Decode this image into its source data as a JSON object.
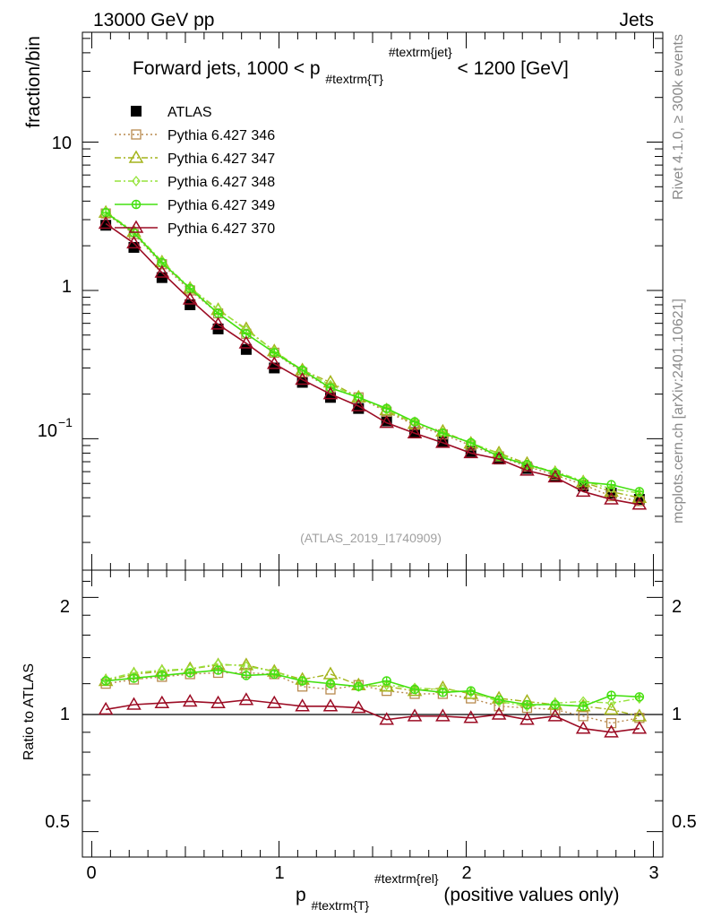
{
  "header": {
    "left": "13000 GeV pp",
    "right": "Jets"
  },
  "side_labels": {
    "rivet": "Rivet 4.1.0, ≥ 300k events",
    "mcplots": "mcplots.cern.ch [arXiv:2401.10621]"
  },
  "watermark": "(ATLAS_2019_I1740909)",
  "chart_data": [
    {
      "type": "line",
      "title": "Forward jets, 1000 < p",
      "title_sub": "#textrm{T}",
      "title_sup": "#textrm{jet}",
      "title_end": " < 1200 [GeV]",
      "ylabel": "fraction/bin",
      "yscale": "log",
      "ylim": [
        0.013,
        55
      ],
      "xlim": [
        -0.05,
        3.05
      ],
      "y_ticks": [
        {
          "value": 10,
          "label": "10"
        },
        {
          "value": 1,
          "label": "1"
        },
        {
          "value": 0.1,
          "label": "10",
          "sup": "−1"
        }
      ],
      "x": [
        0.075,
        0.225,
        0.375,
        0.525,
        0.675,
        0.825,
        0.975,
        1.125,
        1.275,
        1.425,
        1.575,
        1.725,
        1.875,
        2.025,
        2.175,
        2.325,
        2.475,
        2.625,
        2.775,
        2.925
      ],
      "legend": {
        "position": "top-left"
      },
      "series": [
        {
          "name": "ATLAS",
          "color": "#000000",
          "marker": "filled-square",
          "line": "none",
          "values": [
            2.75,
            1.95,
            1.22,
            0.8,
            0.55,
            0.4,
            0.3,
            0.24,
            0.19,
            0.16,
            0.132,
            0.11,
            0.095,
            0.082,
            0.073,
            0.063,
            0.056,
            0.048,
            0.043,
            0.039
          ]
        },
        {
          "name": "Pythia 6.427 346",
          "color": "#b88a4e",
          "marker": "open-square",
          "line": "dotted",
          "values": [
            3.3,
            2.4,
            1.5,
            1.0,
            0.7,
            0.51,
            0.38,
            0.28,
            0.22,
            0.19,
            0.152,
            0.124,
            0.107,
            0.09,
            0.076,
            0.065,
            0.057,
            0.049,
            0.041,
            0.038
          ]
        },
        {
          "name": "Pythia 6.427 347",
          "color": "#a4b41c",
          "marker": "open-triangle",
          "line": "dash-dot",
          "values": [
            3.35,
            2.48,
            1.55,
            1.03,
            0.74,
            0.55,
            0.39,
            0.29,
            0.24,
            0.19,
            0.156,
            0.126,
            0.112,
            0.093,
            0.08,
            0.068,
            0.059,
            0.051,
            0.044,
            0.04
          ]
        },
        {
          "name": "Pythia 6.427 348",
          "color": "#96e43c",
          "marker": "open-diamond",
          "line": "dash-dot",
          "values": [
            3.38,
            2.5,
            1.57,
            1.04,
            0.75,
            0.54,
            0.39,
            0.29,
            0.23,
            0.19,
            0.157,
            0.128,
            0.11,
            0.094,
            0.079,
            0.066,
            0.06,
            0.052,
            0.046,
            0.043
          ]
        },
        {
          "name": "Pythia 6.427 349",
          "color": "#44e010",
          "marker": "open-circle-cross",
          "line": "solid",
          "values": [
            3.35,
            2.45,
            1.54,
            1.03,
            0.7,
            0.51,
            0.38,
            0.29,
            0.22,
            0.19,
            0.16,
            0.13,
            0.109,
            0.094,
            0.076,
            0.067,
            0.059,
            0.051,
            0.049,
            0.044
          ]
        },
        {
          "name": "Pythia 6.427 370",
          "color": "#9c0c24",
          "marker": "open-triangle",
          "line": "solid",
          "values": [
            2.82,
            2.08,
            1.32,
            0.87,
            0.59,
            0.44,
            0.32,
            0.25,
            0.2,
            0.166,
            0.128,
            0.109,
            0.094,
            0.08,
            0.073,
            0.061,
            0.055,
            0.044,
            0.039,
            0.036
          ]
        }
      ]
    },
    {
      "type": "line",
      "ylabel": "Ratio to ATLAS",
      "xlabel": "p",
      "xlabel_sub": "#textrm{T}",
      "xlabel_sup": "#textrm{rel}",
      "xlabel_end": " (positive values only)",
      "yscale": "log",
      "ylim": [
        0.43,
        2.35
      ],
      "xlim": [
        -0.05,
        3.05
      ],
      "y_ticks": [
        {
          "value": 2,
          "label": "2"
        },
        {
          "value": 1,
          "label": "1"
        },
        {
          "value": 0.5,
          "label": "0.5"
        }
      ],
      "x_ticks": [
        {
          "value": 0,
          "label": "0"
        },
        {
          "value": 1,
          "label": "1"
        },
        {
          "value": 2,
          "label": "2"
        },
        {
          "value": 3,
          "label": "3"
        }
      ],
      "x": [
        0.075,
        0.225,
        0.375,
        0.525,
        0.675,
        0.825,
        0.975,
        1.125,
        1.275,
        1.425,
        1.575,
        1.725,
        1.875,
        2.025,
        2.175,
        2.325,
        2.475,
        2.625,
        2.775,
        2.925
      ],
      "series": [
        {
          "name": "Pythia 6.427 346",
          "color": "#b88a4e",
          "marker": "open-square",
          "line": "dotted",
          "values": [
            1.2,
            1.23,
            1.25,
            1.27,
            1.28,
            1.28,
            1.27,
            1.18,
            1.16,
            1.19,
            1.15,
            1.13,
            1.13,
            1.1,
            1.05,
            1.04,
            1.03,
            0.99,
            0.95,
            0.98
          ]
        },
        {
          "name": "Pythia 6.427 347",
          "color": "#a4b41c",
          "marker": "open-triangle",
          "line": "dash-dot",
          "values": [
            1.22,
            1.27,
            1.29,
            1.31,
            1.34,
            1.34,
            1.29,
            1.23,
            1.27,
            1.19,
            1.18,
            1.15,
            1.17,
            1.13,
            1.1,
            1.08,
            1.06,
            1.05,
            1.03,
            0.99
          ]
        },
        {
          "name": "Pythia 6.427 348",
          "color": "#96e43c",
          "marker": "open-diamond",
          "line": "dash-dot",
          "values": [
            1.23,
            1.28,
            1.3,
            1.31,
            1.35,
            1.33,
            1.29,
            1.22,
            1.2,
            1.18,
            1.19,
            1.17,
            1.16,
            1.14,
            1.08,
            1.05,
            1.07,
            1.08,
            1.07,
            1.1
          ]
        },
        {
          "name": "Pythia 6.427 349",
          "color": "#44e010",
          "marker": "open-circle-cross",
          "line": "solid",
          "values": [
            1.22,
            1.24,
            1.26,
            1.28,
            1.3,
            1.26,
            1.27,
            1.22,
            1.2,
            1.18,
            1.22,
            1.16,
            1.14,
            1.15,
            1.09,
            1.06,
            1.06,
            1.05,
            1.12,
            1.11
          ]
        },
        {
          "name": "Pythia 6.427 370",
          "color": "#9c0c24",
          "marker": "open-triangle",
          "line": "solid",
          "values": [
            1.03,
            1.06,
            1.07,
            1.08,
            1.07,
            1.09,
            1.07,
            1.05,
            1.05,
            1.04,
            0.97,
            0.99,
            0.99,
            0.98,
            1.0,
            0.97,
            0.99,
            0.92,
            0.9,
            0.92
          ]
        }
      ]
    }
  ]
}
